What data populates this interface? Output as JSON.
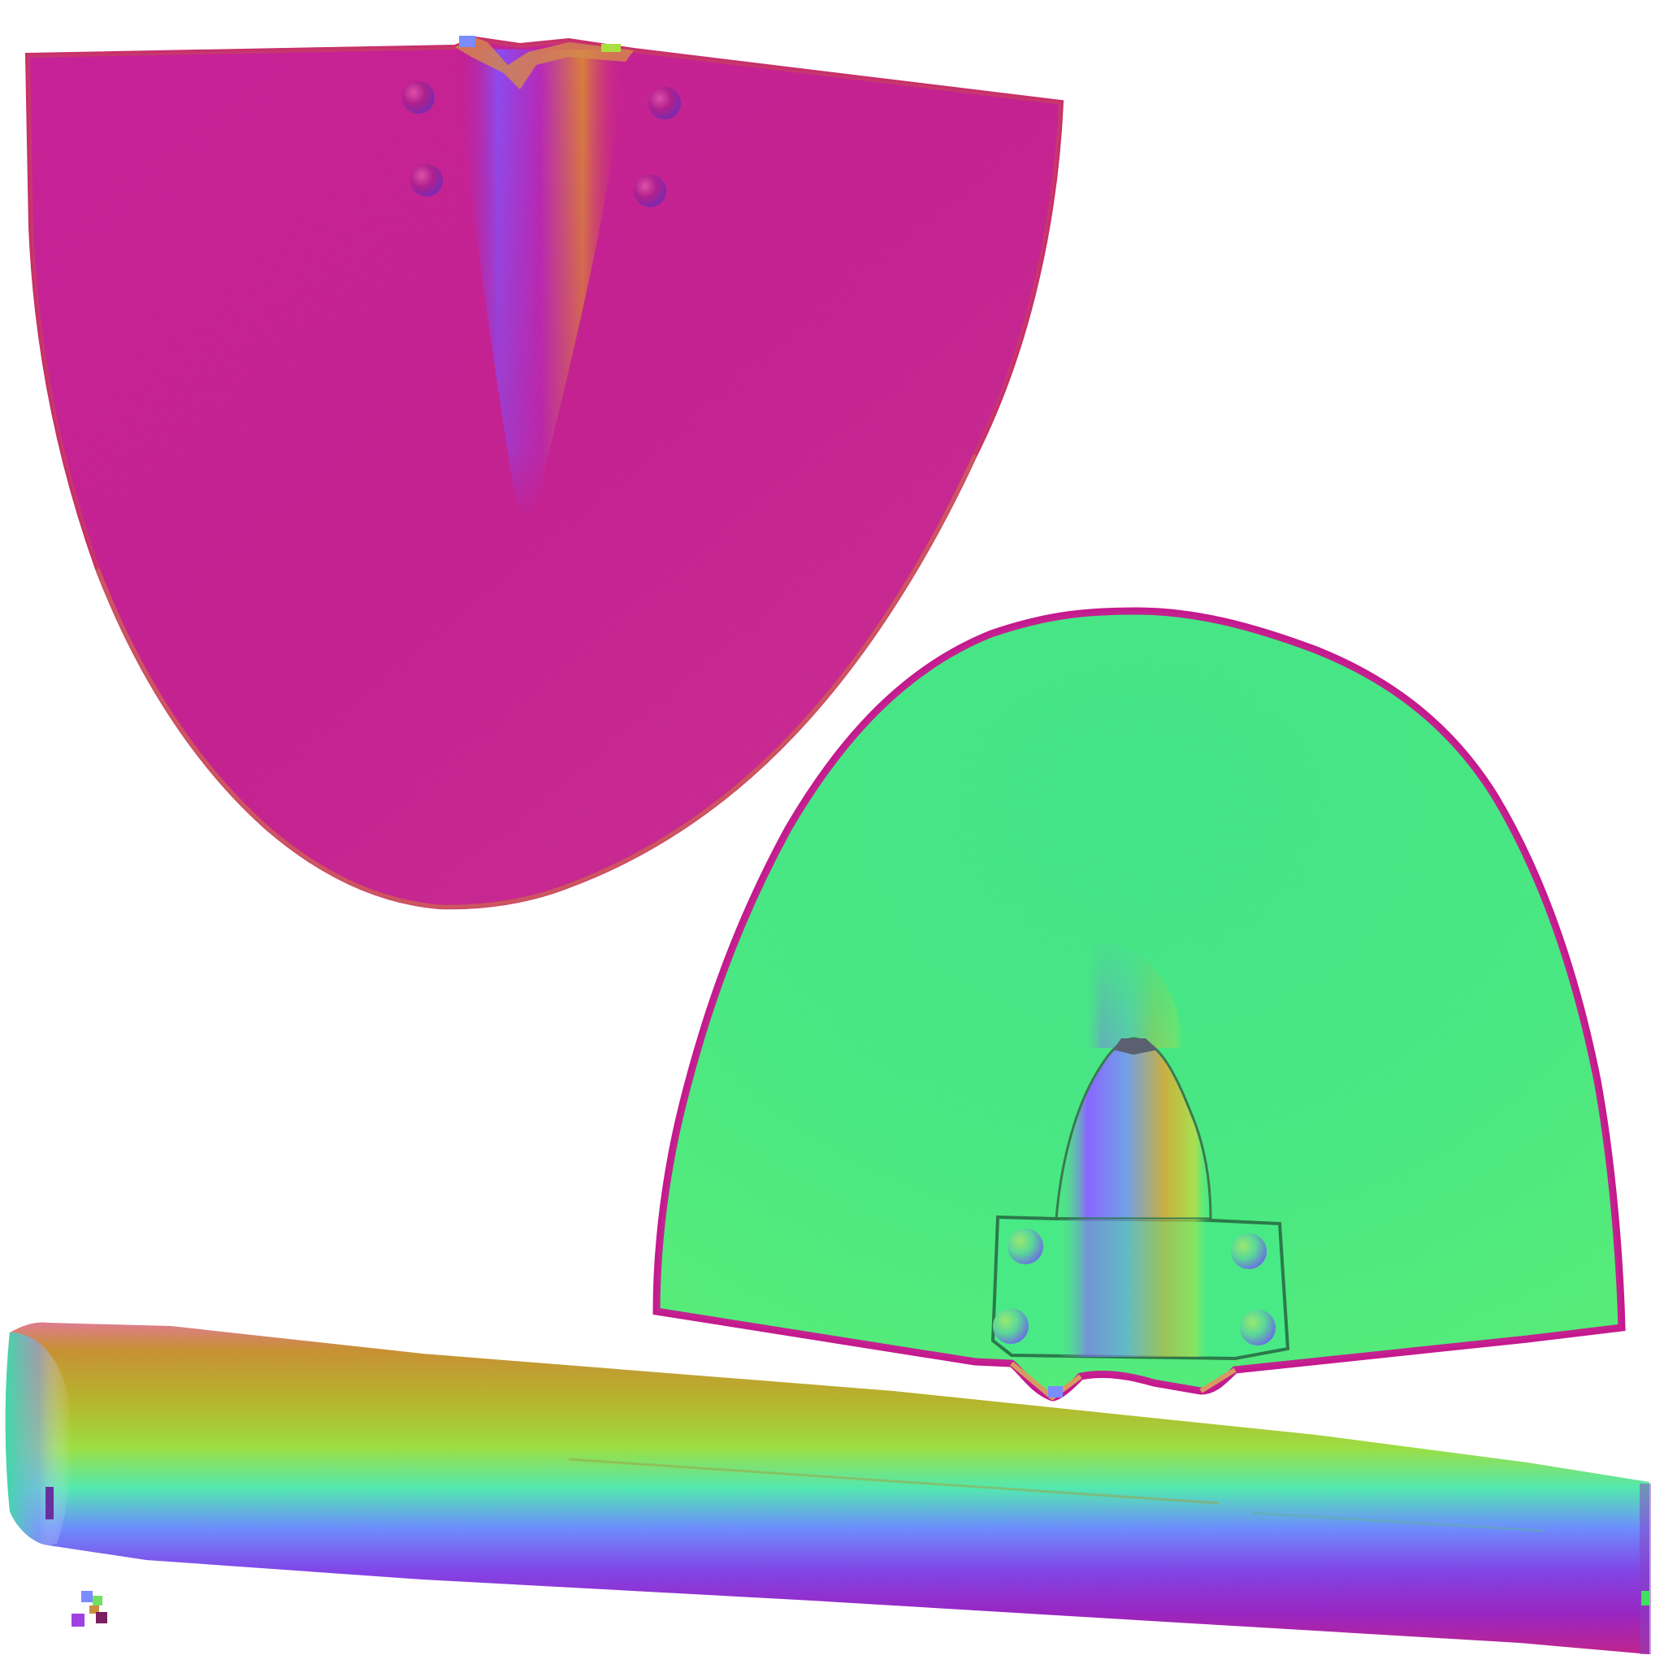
{
  "image": {
    "kind": "normal-map texture atlas of a shovel",
    "background_color": "#ffffff",
    "parts": [
      {
        "id": "blade-back",
        "label": "",
        "base_color": "#c41a8e",
        "rivets": 4
      },
      {
        "id": "blade-front",
        "label": "",
        "base_color": "#3ee882",
        "rivets": 4
      },
      {
        "id": "handle",
        "label": "",
        "gradient_colors": [
          "#e85aa0",
          "#c89030",
          "#a8e040",
          "#40e8a8",
          "#7070ff",
          "#9020c0",
          "#c01880"
        ]
      }
    ],
    "palette": {
      "magenta": "#c41a8e",
      "magenta_light": "#d0309a",
      "green": "#3ee882",
      "green_light": "#50f090",
      "violet": "#7a50ff",
      "orange": "#d89a40"
    }
  }
}
